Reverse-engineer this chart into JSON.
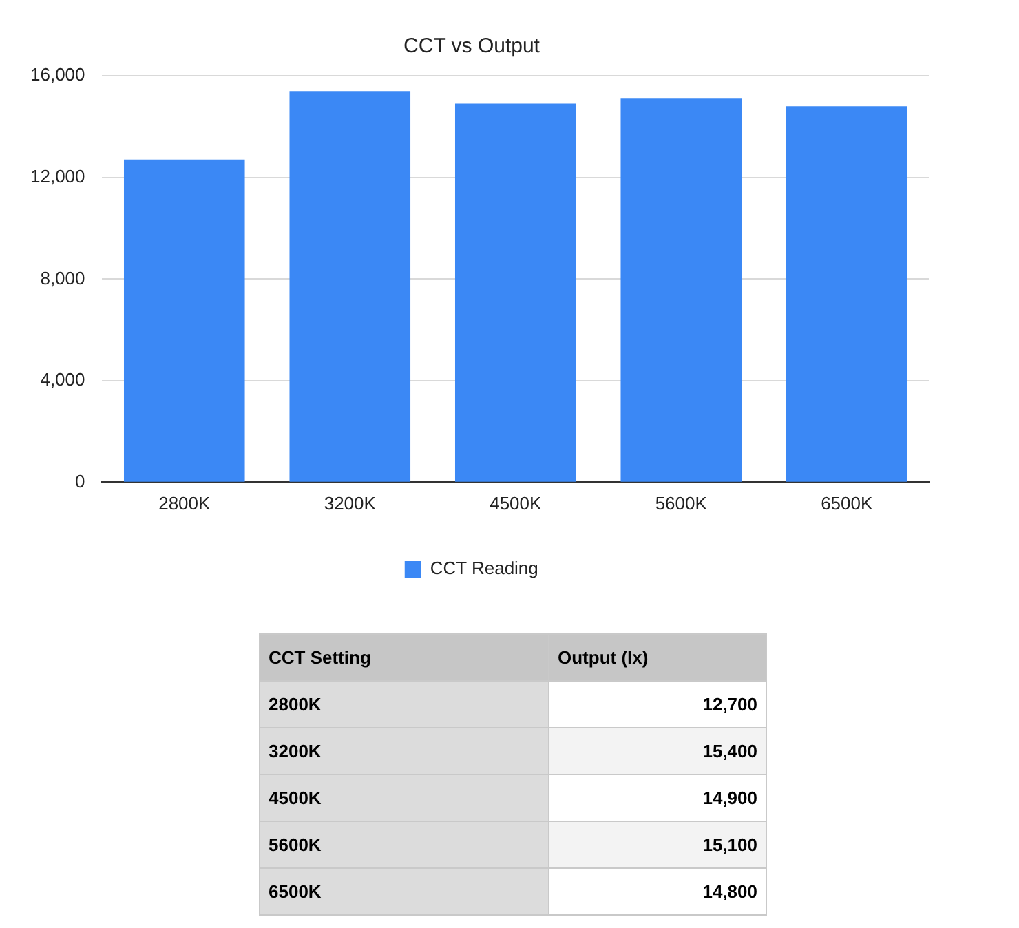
{
  "chart_data": {
    "type": "bar",
    "title": "CCT vs Output",
    "categories": [
      "2800K",
      "3200K",
      "4500K",
      "5600K",
      "6500K"
    ],
    "series": [
      {
        "name": "CCT Reading",
        "color": "#3b88f5",
        "values": [
          12700,
          15400,
          14900,
          15100,
          14800
        ]
      }
    ],
    "value_labels": [
      "12,700",
      "15,400",
      "14,900",
      "15,100",
      "14,800"
    ],
    "ylim": [
      0,
      16000
    ],
    "yticks": [
      {
        "value": 0,
        "label": "0"
      },
      {
        "value": 4000,
        "label": "4,000"
      },
      {
        "value": 8000,
        "label": "8,000"
      },
      {
        "value": 12000,
        "label": "12,000"
      },
      {
        "value": 16000,
        "label": "16,000"
      }
    ],
    "grid": "y",
    "legend": "bottom",
    "annotations": [
      "CCT Setting",
      "Output (lx)"
    ]
  }
}
